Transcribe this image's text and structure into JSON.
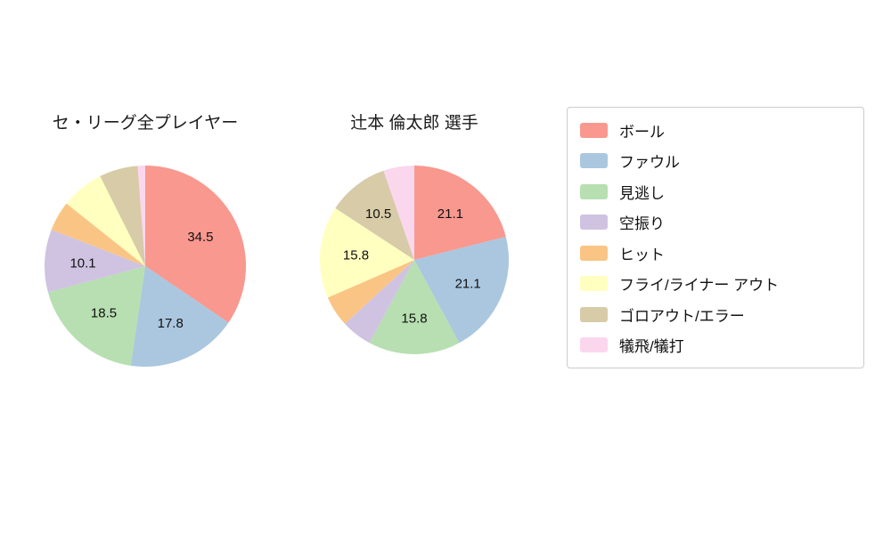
{
  "page": {
    "background": "#ffffff"
  },
  "colors": {
    "ball": "#f8988f",
    "foul": "#aac7df",
    "looking": "#b7dfb1",
    "swinging": "#cfc3e1",
    "hit": "#fac584",
    "fly_liner_out": "#ffffc0",
    "ground_out_error": "#d7cba8",
    "sac": "#fbd7ee"
  },
  "legend": {
    "items": [
      {
        "label": "ボール",
        "color": "#f8988f"
      },
      {
        "label": "ファウル",
        "color": "#aac7df"
      },
      {
        "label": "見逃し",
        "color": "#b7dfb1"
      },
      {
        "label": "空振り",
        "color": "#cfc3e1"
      },
      {
        "label": "ヒット",
        "color": "#fac584"
      },
      {
        "label": "フライ/ライナー アウト",
        "color": "#ffffc0"
      },
      {
        "label": "ゴロアウト/エラー",
        "color": "#d7cba8"
      },
      {
        "label": "犠飛/犠打",
        "color": "#fbd7ee"
      }
    ]
  },
  "chart_data": [
    {
      "type": "pie",
      "title": "セ・リーグ全プレイヤー",
      "labels": [
        "ボール",
        "ファウル",
        "見逃し",
        "空振り",
        "ヒット",
        "フライ/ライナー アウト",
        "ゴロアウト/エラー",
        "犠飛/犠打"
      ],
      "values": [
        34.5,
        17.8,
        18.5,
        10.1,
        4.8,
        6.9,
        6.2,
        1.2
      ],
      "value_labels_shown": [
        "34.5",
        "17.8",
        "18.5",
        "10.1",
        "",
        "",
        "",
        ""
      ],
      "colors": [
        "#f8988f",
        "#aac7df",
        "#b7dfb1",
        "#cfc3e1",
        "#fac584",
        "#ffffc0",
        "#d7cba8",
        "#fbd7ee"
      ],
      "start_angle_deg": 90,
      "direction": "clockwise",
      "legend_position": "right"
    },
    {
      "type": "pie",
      "title": "辻本 倫太郎 選手",
      "labels": [
        "ボール",
        "ファウル",
        "見逃し",
        "空振り",
        "ヒット",
        "フライ/ライナー アウト",
        "ゴロアウト/エラー",
        "犠飛/犠打"
      ],
      "values": [
        21.1,
        21.1,
        15.8,
        5.3,
        5.3,
        15.8,
        10.5,
        5.3
      ],
      "value_labels_shown": [
        "21.1",
        "21.1",
        "15.8",
        "",
        "",
        "15.8",
        "10.5",
        ""
      ],
      "colors": [
        "#f8988f",
        "#aac7df",
        "#b7dfb1",
        "#cfc3e1",
        "#fac584",
        "#ffffc0",
        "#d7cba8",
        "#fbd7ee"
      ],
      "start_angle_deg": 90,
      "direction": "clockwise",
      "legend_position": "right"
    }
  ]
}
